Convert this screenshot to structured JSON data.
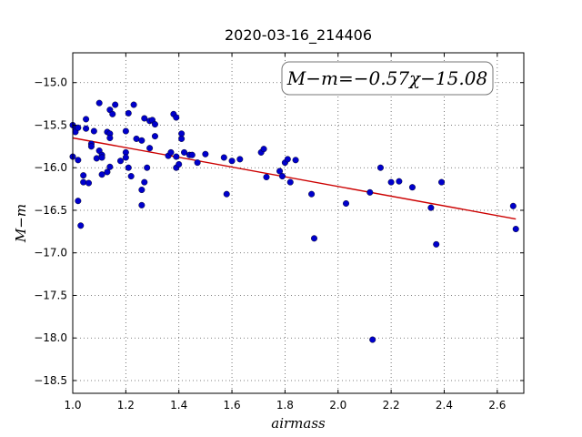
{
  "chart_data": {
    "type": "scatter",
    "title": "2020-03-16_214406",
    "xlabel": "airmass",
    "ylabel": "M−m",
    "xlim": [
      1.0,
      2.7
    ],
    "ylim": [
      -18.65,
      -14.65
    ],
    "x_ticks": [
      1.0,
      1.2,
      1.4,
      1.6,
      1.8,
      2.0,
      2.2,
      2.4,
      2.6
    ],
    "x_tick_labels": [
      "1.0",
      "1.2",
      "1.4",
      "1.6",
      "1.8",
      "2.0",
      "2.2",
      "2.4",
      "2.6"
    ],
    "y_ticks": [
      -15.0,
      -15.5,
      -16.0,
      -16.5,
      -17.0,
      -17.5,
      -18.0,
      -18.5
    ],
    "y_tick_labels": [
      "−15.0",
      "−15.5",
      "−16.0",
      "−16.5",
      "−17.0",
      "−17.5",
      "−18.0",
      "−18.5"
    ],
    "grid": true,
    "annotation": "M−m=−0.57χ−15.08",
    "fit": {
      "slope": -0.57,
      "intercept": -15.08,
      "x_range": [
        1.0,
        2.67
      ],
      "color": "#cc0000"
    },
    "point_color": "#0000cc",
    "points": [
      [
        1.0,
        -15.5
      ],
      [
        1.0,
        -15.87
      ],
      [
        1.01,
        -15.55
      ],
      [
        1.01,
        -15.58
      ],
      [
        1.02,
        -15.53
      ],
      [
        1.02,
        -15.91
      ],
      [
        1.02,
        -16.39
      ],
      [
        1.03,
        -16.68
      ],
      [
        1.04,
        -16.09
      ],
      [
        1.04,
        -16.17
      ],
      [
        1.05,
        -15.43
      ],
      [
        1.05,
        -15.54
      ],
      [
        1.06,
        -16.18
      ],
      [
        1.07,
        -15.72
      ],
      [
        1.07,
        -15.75
      ],
      [
        1.08,
        -15.57
      ],
      [
        1.09,
        -15.89
      ],
      [
        1.1,
        -15.24
      ],
      [
        1.1,
        -15.8
      ],
      [
        1.11,
        -15.85
      ],
      [
        1.11,
        -15.88
      ],
      [
        1.11,
        -16.08
      ],
      [
        1.13,
        -15.58
      ],
      [
        1.13,
        -16.05
      ],
      [
        1.14,
        -15.32
      ],
      [
        1.14,
        -15.6
      ],
      [
        1.14,
        -15.65
      ],
      [
        1.14,
        -15.99
      ],
      [
        1.15,
        -15.37
      ],
      [
        1.16,
        -15.26
      ],
      [
        1.18,
        -15.92
      ],
      [
        1.2,
        -15.57
      ],
      [
        1.2,
        -15.82
      ],
      [
        1.2,
        -15.88
      ],
      [
        1.21,
        -15.36
      ],
      [
        1.21,
        -16.0
      ],
      [
        1.22,
        -16.1
      ],
      [
        1.23,
        -15.26
      ],
      [
        1.24,
        -15.66
      ],
      [
        1.26,
        -15.68
      ],
      [
        1.26,
        -16.26
      ],
      [
        1.26,
        -16.44
      ],
      [
        1.27,
        -15.42
      ],
      [
        1.27,
        -16.17
      ],
      [
        1.28,
        -16.0
      ],
      [
        1.29,
        -15.45
      ],
      [
        1.29,
        -15.77
      ],
      [
        1.3,
        -15.44
      ],
      [
        1.31,
        -15.49
      ],
      [
        1.31,
        -15.63
      ],
      [
        1.36,
        -15.86
      ],
      [
        1.37,
        -15.82
      ],
      [
        1.38,
        -15.37
      ],
      [
        1.39,
        -15.41
      ],
      [
        1.39,
        -15.87
      ],
      [
        1.39,
        -16.0
      ],
      [
        1.4,
        -15.96
      ],
      [
        1.41,
        -15.6
      ],
      [
        1.41,
        -15.66
      ],
      [
        1.42,
        -15.82
      ],
      [
        1.44,
        -15.85
      ],
      [
        1.45,
        -15.85
      ],
      [
        1.47,
        -15.94
      ],
      [
        1.5,
        -15.84
      ],
      [
        1.57,
        -15.88
      ],
      [
        1.58,
        -16.31
      ],
      [
        1.6,
        -15.92
      ],
      [
        1.63,
        -15.9
      ],
      [
        1.71,
        -15.82
      ],
      [
        1.72,
        -15.78
      ],
      [
        1.73,
        -16.11
      ],
      [
        1.78,
        -16.04
      ],
      [
        1.79,
        -16.1
      ],
      [
        1.8,
        -15.94
      ],
      [
        1.81,
        -15.9
      ],
      [
        1.82,
        -16.17
      ],
      [
        1.84,
        -15.91
      ],
      [
        1.9,
        -16.31
      ],
      [
        1.91,
        -16.83
      ],
      [
        2.03,
        -16.42
      ],
      [
        2.12,
        -16.29
      ],
      [
        2.13,
        -18.02
      ],
      [
        2.16,
        -16.0
      ],
      [
        2.2,
        -16.17
      ],
      [
        2.23,
        -16.16
      ],
      [
        2.28,
        -16.23
      ],
      [
        2.35,
        -16.47
      ],
      [
        2.37,
        -16.9
      ],
      [
        2.39,
        -16.17
      ],
      [
        2.66,
        -16.45
      ],
      [
        2.67,
        -16.72
      ]
    ]
  }
}
